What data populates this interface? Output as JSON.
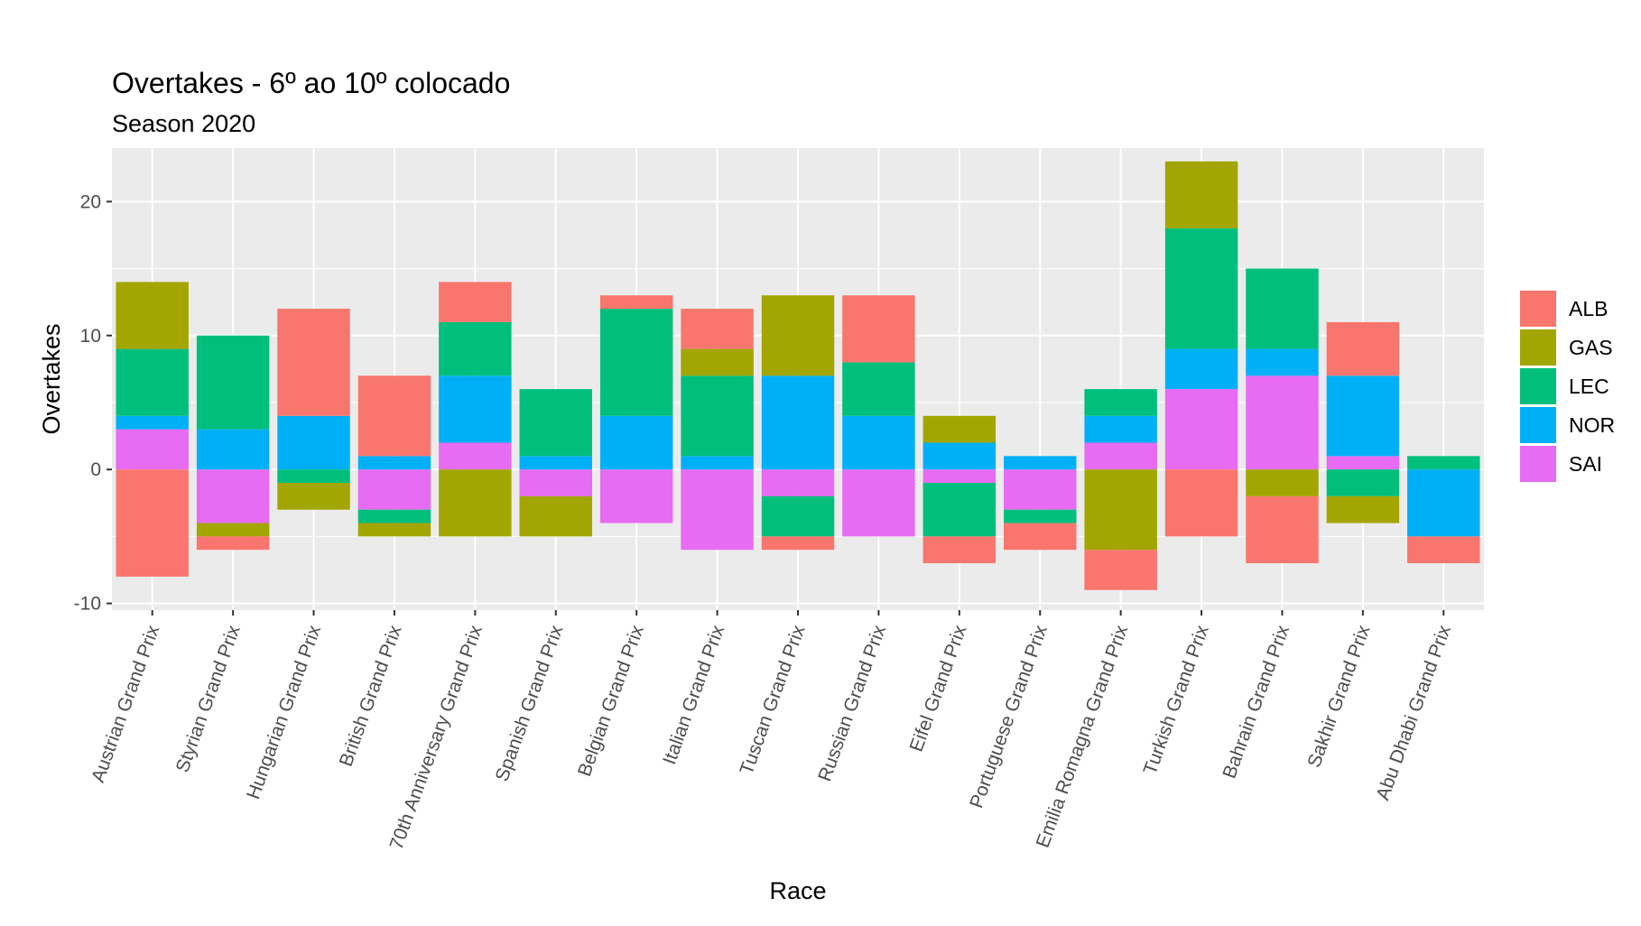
{
  "chart_data": {
    "type": "bar",
    "stacked": true,
    "title": "Overtakes - 6º ao 10º colocado",
    "subtitle": "Season 2020",
    "xlabel": "Race",
    "ylabel": "Overtakes",
    "ylim": [
      -10.5,
      24
    ],
    "yticks": [
      -10,
      0,
      10,
      20
    ],
    "grid": true,
    "legend_position": "right",
    "stack_order": [
      "SAI",
      "NOR",
      "LEC",
      "GAS",
      "ALB"
    ],
    "categories": [
      "Austrian Grand Prix",
      "Styrian Grand Prix",
      "Hungarian Grand Prix",
      "British Grand Prix",
      "70th Anniversary Grand Prix",
      "Spanish Grand Prix",
      "Belgian Grand Prix",
      "Italian Grand Prix",
      "Tuscan Grand Prix",
      "Russian Grand Prix",
      "Eifel Grand Prix",
      "Portuguese Grand Prix",
      "Emilia Romagna Grand Prix",
      "Turkish Grand Prix",
      "Bahrain Grand Prix",
      "Sakhir Grand Prix",
      "Abu Dhabi Grand Prix"
    ],
    "series": [
      {
        "name": "ALB",
        "color": "#F8766D",
        "values": [
          -8,
          -1,
          8,
          6,
          3,
          0,
          1,
          3,
          -1,
          5,
          -2,
          -2,
          -3,
          -5,
          -5,
          4,
          -2
        ]
      },
      {
        "name": "GAS",
        "color": "#A3A500",
        "values": [
          5,
          -1,
          -2,
          -1,
          -5,
          -3,
          0,
          2,
          6,
          0,
          2,
          0,
          -6,
          5,
          -2,
          -2,
          0
        ]
      },
      {
        "name": "LEC",
        "color": "#00BF7D",
        "values": [
          5,
          7,
          -1,
          -1,
          4,
          5,
          8,
          6,
          -3,
          4,
          -4,
          -1,
          2,
          9,
          6,
          -2,
          1
        ]
      },
      {
        "name": "NOR",
        "color": "#00B0F6",
        "values": [
          1,
          3,
          4,
          1,
          5,
          1,
          4,
          1,
          7,
          4,
          2,
          1,
          2,
          3,
          2,
          6,
          -5
        ]
      },
      {
        "name": "SAI",
        "color": "#E76BF3",
        "values": [
          3,
          -4,
          0,
          -3,
          2,
          -2,
          -4,
          -6,
          -2,
          -5,
          -1,
          -3,
          2,
          6,
          7,
          1,
          0
        ]
      }
    ]
  }
}
